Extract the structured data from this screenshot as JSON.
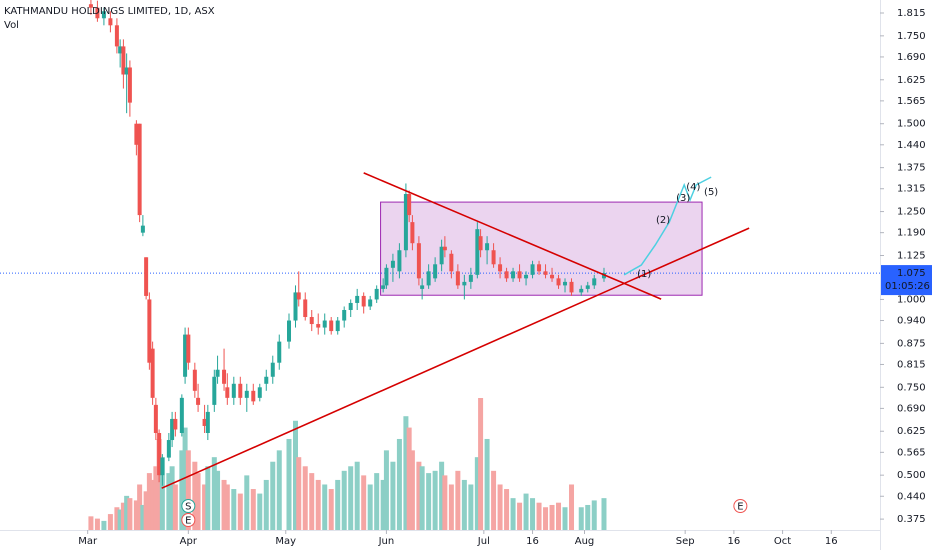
{
  "chart_data": {
    "type": "candlestick",
    "title": "KATHMANDU HOLDINGS LIMITED, 1D, ASX",
    "volume_label": "Vol",
    "up_color": "#26a69a",
    "down_color": "#ef5350",
    "volume_up_color": "#8ccfc6",
    "volume_down_color": "#f5a5a3",
    "xlim": [
      -26,
      245
    ],
    "ylim": [
      0.344,
      1.852
    ],
    "xticks": [
      {
        "value": 1,
        "label": "Mar"
      },
      {
        "value": 32,
        "label": "Apr"
      },
      {
        "value": 62,
        "label": "May"
      },
      {
        "value": 93,
        "label": "Jun"
      },
      {
        "value": 123,
        "label": "Jul"
      },
      {
        "value": 138,
        "label": "16"
      },
      {
        "value": 154,
        "label": "Aug"
      },
      {
        "value": 185,
        "label": "Sep"
      },
      {
        "value": 200,
        "label": "16"
      },
      {
        "value": 215,
        "label": "Oct"
      },
      {
        "value": 230,
        "label": "16"
      }
    ],
    "yticks": [
      1.815,
      {
        "value": 1.75,
        "label": "1.750"
      },
      {
        "value": 1.69,
        "label": "1.690"
      },
      1.625,
      1.565,
      {
        "value": 1.5,
        "label": "1.500"
      },
      {
        "value": 1.44,
        "label": "1.440"
      },
      1.375,
      1.315,
      {
        "value": 1.25,
        "label": "1.250"
      },
      {
        "value": 1.19,
        "label": "1.190"
      },
      1.125,
      {
        "value": 1,
        "label": "1.000"
      },
      {
        "value": 0.94,
        "label": "0.940"
      },
      0.875,
      0.815,
      {
        "value": 0.75,
        "label": "0.750"
      },
      {
        "value": 0.69,
        "label": "0.690"
      },
      0.625,
      0.565,
      {
        "value": 0.5,
        "label": "0.500"
      },
      {
        "value": 0.44,
        "label": "0.440"
      },
      0.375
    ],
    "x": [
      2,
      4,
      6,
      8,
      10,
      11,
      12,
      13,
      14,
      16,
      17,
      18,
      19,
      20,
      21,
      22,
      23,
      24,
      26,
      27,
      28,
      30,
      31,
      32,
      34,
      35,
      37,
      38,
      40,
      41,
      43,
      44,
      46,
      48,
      50,
      52,
      54,
      56,
      58,
      60,
      63,
      65,
      66,
      68,
      70,
      72,
      74,
      76,
      78,
      80,
      82,
      84,
      86,
      88,
      90,
      92,
      93,
      95,
      97,
      99,
      100,
      101,
      103,
      104,
      106,
      108,
      110,
      111,
      113,
      115,
      117,
      119,
      121,
      122,
      124,
      126,
      128,
      130,
      132,
      134,
      136,
      138,
      140,
      142,
      144,
      146,
      148,
      150,
      153,
      155,
      157,
      160
    ],
    "open": [
      1.84,
      1.83,
      1.8,
      1.8,
      1.78,
      1.7,
      1.72,
      1.64,
      1.66,
      1.5,
      1.5,
      1.19,
      1.12,
      1.0,
      0.86,
      0.7,
      0.62,
      0.5,
      0.55,
      0.6,
      0.66,
      0.62,
      0.78,
      0.9,
      0.8,
      0.72,
      0.66,
      0.62,
      0.7,
      0.78,
      0.8,
      0.75,
      0.72,
      0.76,
      0.72,
      0.74,
      0.72,
      0.76,
      0.78,
      0.82,
      0.88,
      0.94,
      1.02,
      1.0,
      0.95,
      0.93,
      0.92,
      0.94,
      0.91,
      0.94,
      0.97,
      0.99,
      1.01,
      0.98,
      1.0,
      1.03,
      1.04,
      1.09,
      1.08,
      1.14,
      1.3,
      1.22,
      1.16,
      1.03,
      1.04,
      1.06,
      1.1,
      1.15,
      1.13,
      1.08,
      1.04,
      1.05,
      1.07,
      1.18,
      1.14,
      1.14,
      1.1,
      1.08,
      1.06,
      1.08,
      1.06,
      1.07,
      1.1,
      1.08,
      1.07,
      1.06,
      1.04,
      1.05,
      1.02,
      1.03,
      1.04,
      1.06
    ],
    "high": [
      1.86,
      1.85,
      1.83,
      1.82,
      1.8,
      1.74,
      1.74,
      1.7,
      1.68,
      1.51,
      1.5,
      1.24,
      1.12,
      1.02,
      0.88,
      0.72,
      0.63,
      0.56,
      0.62,
      0.68,
      0.68,
      0.73,
      0.92,
      0.92,
      0.82,
      0.76,
      0.7,
      0.7,
      0.8,
      0.84,
      0.86,
      0.79,
      0.78,
      0.78,
      0.76,
      0.76,
      0.76,
      0.8,
      0.84,
      0.9,
      0.96,
      1.04,
      1.08,
      1.02,
      0.97,
      0.96,
      0.96,
      0.95,
      0.95,
      0.98,
      1.0,
      1.03,
      1.02,
      1.01,
      1.04,
      1.06,
      1.1,
      1.13,
      1.16,
      1.33,
      1.31,
      1.24,
      1.18,
      1.06,
      1.1,
      1.12,
      1.17,
      1.18,
      1.14,
      1.1,
      1.07,
      1.09,
      1.22,
      1.2,
      1.18,
      1.16,
      1.12,
      1.09,
      1.09,
      1.1,
      1.08,
      1.11,
      1.11,
      1.1,
      1.09,
      1.07,
      1.06,
      1.06,
      1.04,
      1.05,
      1.07,
      1.09
    ],
    "low": [
      1.81,
      1.79,
      1.78,
      1.76,
      1.7,
      1.66,
      1.6,
      1.53,
      1.52,
      1.41,
      1.22,
      1.18,
      1.0,
      0.8,
      0.7,
      0.6,
      0.48,
      0.47,
      0.54,
      0.58,
      0.61,
      0.61,
      0.76,
      0.8,
      0.72,
      0.68,
      0.62,
      0.6,
      0.68,
      0.76,
      0.74,
      0.7,
      0.7,
      0.7,
      0.68,
      0.7,
      0.71,
      0.74,
      0.76,
      0.8,
      0.86,
      0.92,
      0.98,
      0.94,
      0.91,
      0.9,
      0.9,
      0.9,
      0.9,
      0.92,
      0.95,
      0.97,
      0.96,
      0.97,
      0.99,
      1.02,
      1.03,
      1.05,
      1.06,
      1.12,
      1.22,
      1.14,
      1.04,
      1.0,
      1.03,
      1.05,
      1.08,
      1.12,
      1.06,
      1.03,
      1.0,
      1.03,
      1.06,
      1.12,
      1.1,
      1.09,
      1.06,
      1.05,
      1.05,
      1.05,
      1.04,
      1.06,
      1.07,
      1.06,
      1.05,
      1.03,
      1.02,
      1.01,
      1.01,
      1.02,
      1.03,
      1.05
    ],
    "close": [
      1.83,
      1.8,
      1.82,
      1.78,
      1.72,
      1.72,
      1.64,
      1.66,
      1.56,
      1.44,
      1.24,
      1.21,
      1.01,
      0.82,
      0.72,
      0.62,
      0.5,
      0.55,
      0.6,
      0.66,
      0.63,
      0.72,
      0.9,
      0.82,
      0.74,
      0.7,
      0.64,
      0.68,
      0.78,
      0.8,
      0.76,
      0.72,
      0.76,
      0.72,
      0.74,
      0.71,
      0.75,
      0.78,
      0.82,
      0.88,
      0.94,
      1.02,
      1.0,
      0.95,
      0.93,
      0.92,
      0.94,
      0.91,
      0.94,
      0.97,
      0.99,
      1.01,
      0.98,
      1.0,
      1.03,
      1.04,
      1.09,
      1.11,
      1.14,
      1.3,
      1.24,
      1.16,
      1.06,
      1.04,
      1.08,
      1.1,
      1.15,
      1.14,
      1.08,
      1.04,
      1.05,
      1.07,
      1.2,
      1.14,
      1.16,
      1.1,
      1.08,
      1.06,
      1.08,
      1.06,
      1.07,
      1.1,
      1.08,
      1.07,
      1.06,
      1.04,
      1.05,
      1.02,
      1.03,
      1.04,
      1.06,
      1.075
    ],
    "volume": [
      0.6,
      0.5,
      0.4,
      0.7,
      1.0,
      0.9,
      1.2,
      1.5,
      1.4,
      1.3,
      2.0,
      1.1,
      1.7,
      2.5,
      2.2,
      2.8,
      4.0,
      3.2,
      2.5,
      2.8,
      2.0,
      3.5,
      4.5,
      3.5,
      3.0,
      2.5,
      2.0,
      2.8,
      3.2,
      2.6,
      2.2,
      2.0,
      1.8,
      1.6,
      2.4,
      1.8,
      1.6,
      2.2,
      3.0,
      3.5,
      4.0,
      4.8,
      3.2,
      2.8,
      2.5,
      2.2,
      2.0,
      1.8,
      2.2,
      2.6,
      2.8,
      3.0,
      2.4,
      2.0,
      2.5,
      2.2,
      3.5,
      3.0,
      4.0,
      5.0,
      4.5,
      3.5,
      3.0,
      2.8,
      2.5,
      2.6,
      3.0,
      2.4,
      2.0,
      2.6,
      2.2,
      2.0,
      3.2,
      5.8,
      4.0,
      2.6,
      2.0,
      1.8,
      1.4,
      1.2,
      1.6,
      1.4,
      1.2,
      1.0,
      1.1,
      1.2,
      1.0,
      2.0,
      1.0,
      1.1,
      1.3,
      1.4
    ],
    "last_price": 1.075,
    "countdown": "01:05:26",
    "last_color": "#2962ff",
    "trendlines": [
      {
        "x": [
          23.8,
          204.7
        ],
        "y": [
          0.463,
          1.203
        ],
        "color": "#d50000"
      },
      {
        "x": [
          86,
          177.6
        ],
        "y": [
          1.36,
          1.001
        ],
        "color": "#d50000"
      }
    ],
    "rectangle": {
      "x": [
        91.2,
        190.2
      ],
      "y": [
        1.012,
        1.277
      ],
      "color": "#9c27b0"
    },
    "wave": {
      "x": [
        166.2,
        171.5,
        175.8,
        180.1,
        184.7,
        186.5,
        188.4,
        193
      ],
      "y": [
        1.07,
        1.098,
        1.155,
        1.22,
        1.326,
        1.283,
        1.326,
        1.348
      ],
      "color": "#4dd0e1",
      "labels": [
        "(1)",
        "(2)",
        "(3)",
        "(4)",
        "(5)"
      ],
      "label_x": [
        172.4,
        178.2,
        184.4,
        187.5,
        193
      ],
      "label_y": [
        1.072,
        1.226,
        1.289,
        1.32,
        1.306
      ]
    },
    "events": {
      "labels": [
        "S",
        "E",
        "E"
      ],
      "x": [
        32,
        32,
        202
      ],
      "colors": [
        "#26a69a",
        "#ef5350",
        "#ef5350"
      ]
    }
  }
}
